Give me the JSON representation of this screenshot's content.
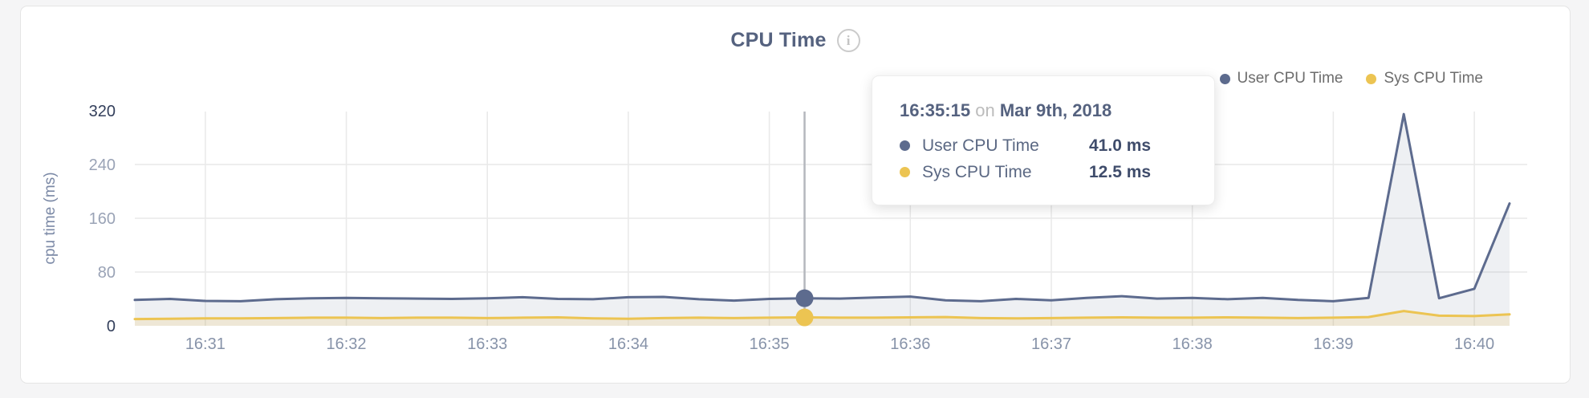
{
  "header": {
    "title": "CPU Time",
    "info_glyph": "i"
  },
  "legend": {
    "items": [
      {
        "label": "User CPU Time",
        "color": "#5d6b8e"
      },
      {
        "label": "Sys CPU Time",
        "color": "#ecc452"
      }
    ]
  },
  "tooltip": {
    "time": "16:35:15",
    "connector": "on",
    "date": "Mar 9th, 2018",
    "rows": [
      {
        "label": "User CPU Time",
        "value": "41.0 ms",
        "color": "#5d6b8e"
      },
      {
        "label": "Sys CPU Time",
        "value": "12.5 ms",
        "color": "#ecc452"
      }
    ]
  },
  "chart_data": {
    "type": "area",
    "title": "CPU Time",
    "xlabel": "",
    "ylabel": "cpu time (ms)",
    "ylim": [
      0,
      320
    ],
    "yticks": [
      0,
      80,
      160,
      240,
      320
    ],
    "xticks": [
      "16:31",
      "16:32",
      "16:33",
      "16:34",
      "16:35",
      "16:36",
      "16:37",
      "16:38",
      "16:39",
      "16:40"
    ],
    "grid": true,
    "legend_position": "top-right",
    "x": [
      "16:30:30",
      "16:30:45",
      "16:31:00",
      "16:31:15",
      "16:31:30",
      "16:31:45",
      "16:32:00",
      "16:32:15",
      "16:32:30",
      "16:32:45",
      "16:33:00",
      "16:33:15",
      "16:33:30",
      "16:33:45",
      "16:34:00",
      "16:34:15",
      "16:34:30",
      "16:34:45",
      "16:35:00",
      "16:35:15",
      "16:35:30",
      "16:35:45",
      "16:36:00",
      "16:36:15",
      "16:36:30",
      "16:36:45",
      "16:37:00",
      "16:37:15",
      "16:37:30",
      "16:37:45",
      "16:38:00",
      "16:38:15",
      "16:38:30",
      "16:38:45",
      "16:39:00",
      "16:39:15",
      "16:39:30",
      "16:39:45",
      "16:40:00",
      "16:40:15"
    ],
    "series": [
      {
        "name": "User CPU Time",
        "color": "#5d6b8e",
        "fill_opacity": 0.1,
        "values": [
          38.5,
          40,
          37,
          36.5,
          39.5,
          41,
          41.5,
          41,
          40.5,
          40,
          41,
          42.5,
          40,
          39.5,
          42.5,
          43,
          39.5,
          37.5,
          40,
          41,
          40.5,
          42,
          43.5,
          38,
          36.5,
          40,
          38,
          41.5,
          44,
          40.5,
          41.5,
          39.5,
          41.5,
          38.5,
          36.5,
          41.5,
          315,
          41,
          55,
          182
        ]
      },
      {
        "name": "Sys CPU Time",
        "color": "#ecc452",
        "fill_opacity": 0.18,
        "values": [
          10,
          10.5,
          11,
          11,
          11.5,
          12,
          12,
          11.5,
          12,
          12,
          11.5,
          12,
          12.5,
          11,
          10.5,
          11.5,
          12,
          11.5,
          12,
          12.5,
          12,
          12,
          12.5,
          13,
          11.5,
          11,
          11.5,
          12,
          12.5,
          12,
          12,
          12.5,
          12,
          11.5,
          12,
          13,
          22,
          15,
          14.5,
          17
        ]
      }
    ],
    "hover": {
      "time": "16:35:15",
      "index": 19
    }
  }
}
